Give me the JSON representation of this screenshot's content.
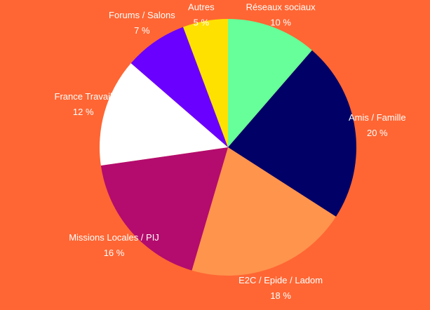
{
  "chart_data": {
    "type": "pie",
    "categories": [
      "Réseaux sociaux",
      "Amis / Famille",
      "E2C / Epide / Ladom",
      "Missions Locales / PIJ",
      "France Travail",
      "Forums / Salons",
      "Autres"
    ],
    "values": [
      10,
      20,
      18,
      16,
      12,
      7,
      5
    ],
    "value_labels": [
      "10 %",
      "20 %",
      "18 %",
      "16 %",
      "12 %",
      "7 %",
      "5 %"
    ],
    "colors": [
      "#66ff99",
      "#000066",
      "#ff944d",
      "#b30c6e",
      "#ffffff",
      "#6a00ff",
      "#ffe100"
    ]
  }
}
